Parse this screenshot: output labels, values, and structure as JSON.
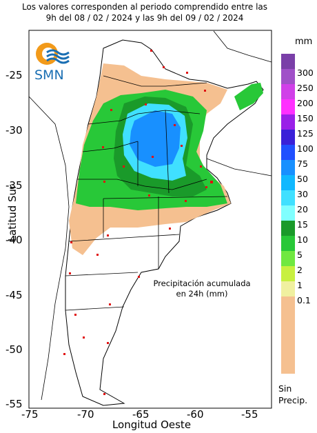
{
  "header": {
    "line1": "Los valores corresponden al periodo comprendido entre las",
    "line2": "9h del 08 / 02 / 2024  y las 9h del 09 / 02 / 2024"
  },
  "logo": {
    "text": "SMN"
  },
  "axes": {
    "ylabel": "Latitud Sur",
    "xlabel": "Longitud Oeste",
    "yticks": [
      "-25",
      "-30",
      "-35",
      "-40",
      "-45",
      "-50",
      "-55"
    ],
    "xticks": [
      "-75",
      "-70",
      "-65",
      "-60",
      "-55"
    ]
  },
  "annotation": {
    "line1": "Precipitación acumulada",
    "line2": "en 24h (mm)"
  },
  "legend": {
    "unit": "mm",
    "levels": [
      "300",
      "250",
      "200",
      "150",
      "125",
      "100",
      "75",
      "50",
      "30",
      "20",
      "15",
      "10",
      "5",
      "2",
      "1",
      "0.1"
    ],
    "colors": [
      "#7a3fa8",
      "#a050c8",
      "#d040e8",
      "#ff30ff",
      "#9a20e8",
      "#3a20d8",
      "#2050ff",
      "#1890ff",
      "#10b8ff",
      "#40e0ff",
      "#80ffff",
      "#1a9a2a",
      "#28c838",
      "#70e840",
      "#c8f040",
      "#f0f0a0",
      "#f5c090"
    ],
    "no_data_line1": "Sin",
    "no_data_line2": "Precip."
  }
}
